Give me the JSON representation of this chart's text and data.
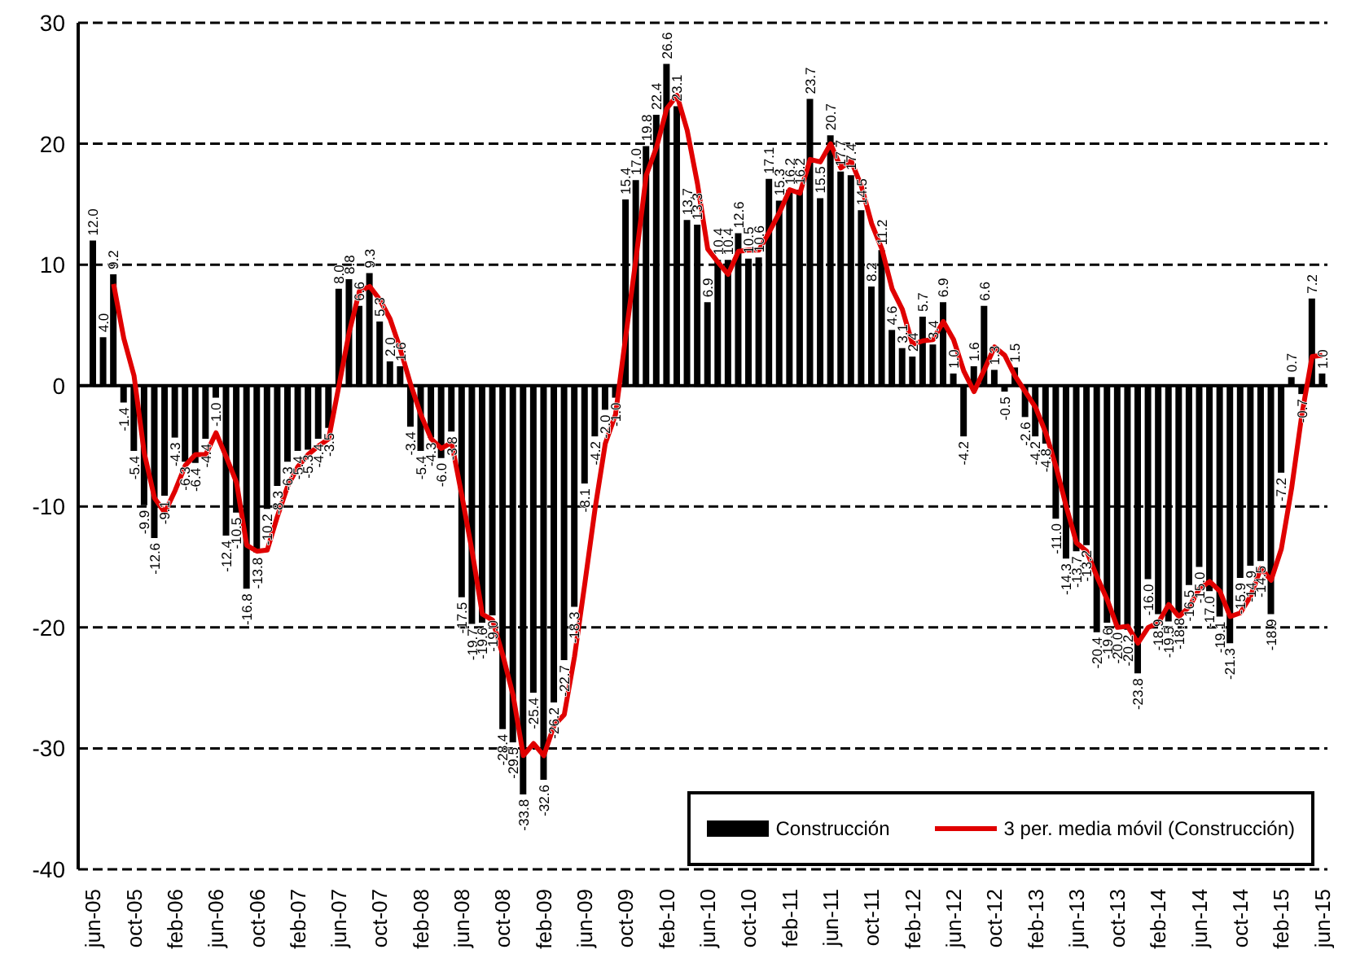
{
  "chart_data": {
    "type": "bar",
    "categories": [
      "jun-05",
      null,
      null,
      null,
      "oct-05",
      null,
      null,
      null,
      "feb-06",
      null,
      null,
      null,
      "jun-06",
      null,
      null,
      null,
      "oct-06",
      null,
      null,
      null,
      "feb-07",
      null,
      null,
      null,
      "jun-07",
      null,
      null,
      null,
      "oct-07",
      null,
      null,
      null,
      "feb-08",
      null,
      null,
      null,
      "jun-08",
      null,
      null,
      null,
      "oct-08",
      null,
      null,
      null,
      "feb-09",
      null,
      null,
      null,
      "jun-09",
      null,
      null,
      null,
      "oct-09",
      null,
      null,
      null,
      "feb-10",
      null,
      null,
      null,
      "jun-10",
      null,
      null,
      null,
      "oct-10",
      null,
      null,
      null,
      "feb-11",
      null,
      null,
      null,
      "jun-11",
      null,
      null,
      null,
      "oct-11",
      null,
      null,
      null,
      "feb-12",
      null,
      null,
      null,
      "jun-12",
      null,
      null,
      null,
      "oct-12",
      null,
      null,
      null,
      "feb-13",
      null,
      null,
      null,
      "jun-13",
      null,
      null,
      null,
      "oct-13",
      null,
      null,
      null,
      "feb-14",
      null,
      null,
      null,
      "jun-14",
      null,
      null,
      null,
      "oct-14",
      null,
      null,
      null,
      "feb-15",
      null,
      null,
      null,
      "jun-15"
    ],
    "series": [
      {
        "name": "Construcción",
        "color": "#000000",
        "value_labels": [
          "12.0",
          "4.0",
          "9.2",
          "-1.4",
          "-5.4",
          "-9.9",
          "-12.6",
          "-9.1",
          "-4.3",
          "-6.3",
          "-6.4",
          "-4.4",
          "-1.0",
          "-12.4",
          "-10.5",
          "-16.8",
          "-13.8",
          "-10.2",
          "-8.3",
          "-6.3",
          "-5.4",
          "-5.3",
          "-4.4",
          "-3.5",
          "8.0",
          "8.8",
          "6.6",
          "9.3",
          "5.3",
          "2.0",
          "1.6",
          "-3.4",
          "-5.4",
          "-4.3",
          "-6.0",
          "-3.8",
          "-17.5",
          "-19.7",
          "-19.6",
          "-19.0",
          "-28.4",
          "-29.5",
          "-33.8",
          "-25.4",
          "-32.6",
          "-26.2",
          "-22.7",
          "-18.3",
          "-8.1",
          "-4.2",
          "-2.0",
          "-1.0",
          "15.4",
          "17.0",
          "19.8",
          "22.4",
          "26.6",
          "23.1",
          "13.7",
          "13.3",
          "6.9",
          "10.4",
          "10.4",
          "12.6",
          "10.5",
          "10.6",
          "17.1",
          "15.3",
          "16.2",
          "16.2",
          "23.7",
          "15.5",
          "20.7",
          "17.7",
          "17.4",
          "14.5",
          "8.2",
          "11.2",
          "4.6",
          "3.1",
          "2.4",
          "5.7",
          "3.4",
          "6.9",
          "1.0",
          "-4.2",
          "1.6",
          "6.6",
          "1.3",
          "-0.5",
          "1.5",
          "-2.6",
          "-4.2",
          "-4.8",
          "-11.0",
          "-14.3",
          "-13.7",
          "-13.2",
          "-20.4",
          "-19.6",
          "-20.0",
          "-20.2",
          "-23.8",
          "-16.0",
          "-18.9",
          "-19.5",
          "-18.8",
          "-16.5",
          "-15.0",
          "-17.0",
          "-19.1",
          "-21.3",
          "-15.9",
          "-14.9",
          "-14.5",
          "-18.9",
          "-7.2",
          "0.7",
          "-0.7",
          "7.2",
          "1.0"
        ],
        "values": [
          12.0,
          4.0,
          9.2,
          -1.4,
          -5.4,
          -9.9,
          -12.6,
          -9.1,
          -4.3,
          -6.3,
          -6.4,
          -4.4,
          -1.0,
          -12.4,
          -10.5,
          -16.8,
          -13.8,
          -10.2,
          -8.3,
          -6.3,
          -5.4,
          -5.3,
          -4.4,
          -3.5,
          8.0,
          8.8,
          6.6,
          9.3,
          5.3,
          2.0,
          1.6,
          -3.4,
          -5.4,
          -4.3,
          -6.0,
          -3.8,
          -17.5,
          -19.7,
          -19.6,
          -19.0,
          -28.4,
          -29.5,
          -33.8,
          -25.4,
          -32.6,
          -26.2,
          -22.7,
          -18.3,
          -8.1,
          -4.2,
          -2.0,
          -1.0,
          15.4,
          17.0,
          19.8,
          22.4,
          26.6,
          23.1,
          13.7,
          13.3,
          6.9,
          10.4,
          10.4,
          12.6,
          10.5,
          10.6,
          17.1,
          15.3,
          16.2,
          16.2,
          23.7,
          15.5,
          20.7,
          17.7,
          17.4,
          14.5,
          8.2,
          11.2,
          4.6,
          3.1,
          2.4,
          5.7,
          3.4,
          6.9,
          1.0,
          -4.2,
          1.6,
          6.6,
          1.3,
          -0.5,
          1.5,
          -2.6,
          -4.2,
          -4.8,
          -11.0,
          -14.3,
          -13.7,
          -13.2,
          -20.4,
          -19.6,
          -20.0,
          -20.2,
          -23.8,
          -16.0,
          -18.9,
          -19.5,
          -18.8,
          -16.5,
          -15.0,
          -17.0,
          -19.1,
          -21.3,
          -15.9,
          -14.9,
          -14.5,
          -18.9,
          -7.2,
          0.7,
          -0.7,
          7.2,
          1.0
        ]
      },
      {
        "name": "3 per. media móvil (Construcción)",
        "type": "line",
        "color": "#e00000",
        "values": [
          null,
          null,
          8.4,
          3.9,
          0.8,
          -5.6,
          -9.3,
          -10.5,
          -8.7,
          -6.6,
          -5.7,
          -5.7,
          -3.9,
          -5.9,
          -8.0,
          -13.2,
          -13.7,
          -13.6,
          -10.8,
          -8.3,
          -6.7,
          -5.7,
          -5.0,
          -4.4,
          0.0,
          4.4,
          7.8,
          8.2,
          7.1,
          5.5,
          3.0,
          0.1,
          -2.4,
          -4.4,
          -5.2,
          -4.7,
          -9.1,
          -13.7,
          -18.9,
          -19.4,
          -22.3,
          -25.6,
          -30.6,
          -29.6,
          -30.6,
          -28.1,
          -27.2,
          -22.4,
          -16.4,
          -10.2,
          -4.8,
          -2.4,
          4.1,
          10.5,
          17.4,
          19.7,
          22.9,
          24.0,
          21.1,
          16.7,
          11.3,
          10.2,
          9.2,
          11.1,
          11.2,
          11.2,
          12.7,
          14.3,
          16.2,
          15.9,
          18.7,
          18.5,
          20.0,
          18.0,
          18.6,
          16.5,
          13.4,
          11.3,
          8.0,
          6.3,
          3.4,
          3.7,
          3.8,
          5.3,
          3.8,
          1.2,
          -0.5,
          1.3,
          3.2,
          2.5,
          0.8,
          -0.5,
          -1.8,
          -3.9,
          -6.7,
          -10.0,
          -13.0,
          -13.7,
          -15.8,
          -17.7,
          -20.0,
          -19.9,
          -21.3,
          -20.0,
          -19.6,
          -18.1,
          -19.1,
          -18.3,
          -16.8,
          -16.2,
          -17.0,
          -19.1,
          -18.8,
          -17.4,
          -15.1,
          -16.1,
          -13.5,
          -8.5,
          -2.4,
          2.4,
          2.5
        ]
      }
    ],
    "ylim": [
      -40,
      30
    ],
    "yticks": [
      -40,
      -30,
      -20,
      -10,
      0,
      10,
      20,
      30
    ],
    "grid": "y",
    "legend": "bottom right",
    "marker": "none",
    "line_style": "solid",
    "ref_lines": [
      {
        "axis": "y",
        "value": 0,
        "color": "#000000",
        "line_style": "solid"
      }
    ]
  }
}
